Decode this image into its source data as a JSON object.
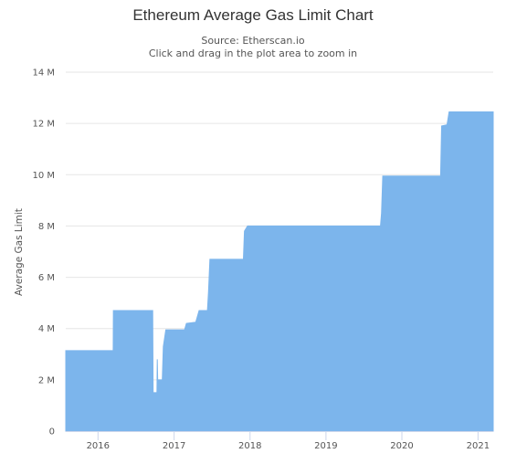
{
  "chart_data": {
    "type": "area",
    "title": "Ethereum Average Gas Limit Chart",
    "subtitle_source": "Source: Etherscan.io",
    "subtitle_hint": "Click and drag in the plot area to zoom in",
    "ylabel": "Average Gas Limit",
    "xlabel": "",
    "ylim": [
      0,
      14000000
    ],
    "xlim": [
      "2015-07-30",
      "2021-03-15"
    ],
    "y_ticks": [
      0,
      2000000,
      4000000,
      6000000,
      8000000,
      10000000,
      12000000,
      14000000
    ],
    "y_tick_labels": [
      "0",
      "2 M",
      "4 M",
      "6 M",
      "8 M",
      "10 M",
      "12 M",
      "14 M"
    ],
    "x_ticks": [
      "2016-01-01",
      "2017-01-01",
      "2018-01-01",
      "2019-01-01",
      "2020-01-01",
      "2021-01-01"
    ],
    "x_tick_labels": [
      "2016",
      "2017",
      "2018",
      "2019",
      "2020",
      "2021"
    ],
    "grid": true,
    "legend": "none",
    "series": [
      {
        "color": "#7cb5ec",
        "points": [
          [
            "2015-07-30",
            3141000
          ],
          [
            "2016-01-12",
            3141000
          ],
          [
            "2016-03-14",
            3141000
          ],
          [
            "2016-03-15",
            4700000
          ],
          [
            "2016-09-20",
            4700000
          ],
          [
            "2016-09-22",
            1500000
          ],
          [
            "2016-10-08",
            1500000
          ],
          [
            "2016-10-10",
            1200000
          ],
          [
            "2016-10-12",
            2800000
          ],
          [
            "2016-10-14",
            2000000
          ],
          [
            "2016-11-05",
            2000000
          ],
          [
            "2016-11-10",
            3300000
          ],
          [
            "2016-11-22",
            3950000
          ],
          [
            "2017-02-20",
            3950000
          ],
          [
            "2017-03-01",
            4200000
          ],
          [
            "2017-04-15",
            4250000
          ],
          [
            "2017-05-01",
            4700000
          ],
          [
            "2017-06-10",
            4700000
          ],
          [
            "2017-06-15",
            5400000
          ],
          [
            "2017-06-22",
            6700000
          ],
          [
            "2017-11-30",
            6700000
          ],
          [
            "2017-12-05",
            7800000
          ],
          [
            "2017-12-20",
            8000000
          ],
          [
            "2019-09-20",
            8000000
          ],
          [
            "2019-09-25",
            8500000
          ],
          [
            "2019-10-01",
            9950000
          ],
          [
            "2020-07-05",
            9950000
          ],
          [
            "2020-07-10",
            11900000
          ],
          [
            "2020-08-05",
            11950000
          ],
          [
            "2020-08-15",
            12450000
          ],
          [
            "2021-03-15",
            12450000
          ]
        ]
      }
    ]
  }
}
